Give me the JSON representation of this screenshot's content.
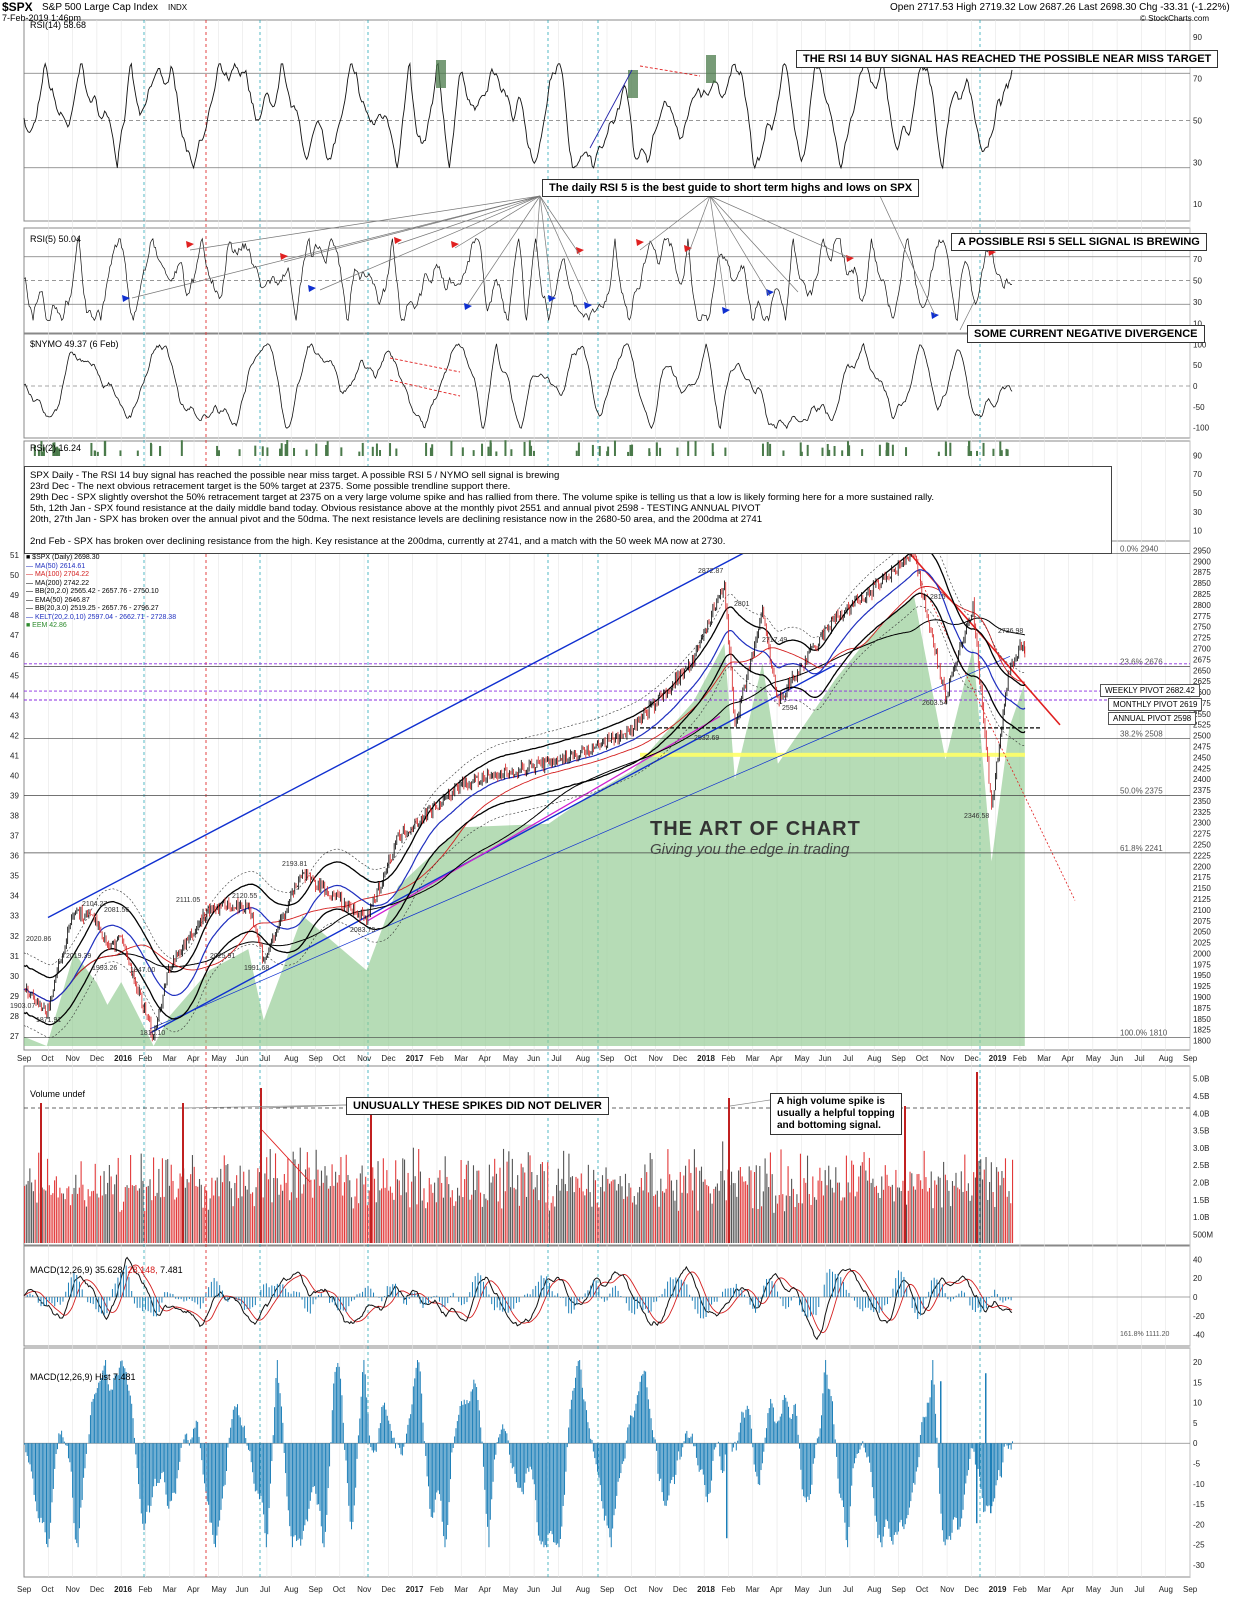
{
  "header": {
    "ticker": "$SPX",
    "name": "S&P 500 Large Cap Index",
    "exchange": "INDX",
    "date": "7-Feb-2019 1:46pm",
    "ohlc": "Open 2717.53 High 2719.32 Low 2687.26 Last 2698.30 Chg -33.31 (-1.22%)",
    "source": "© StockCharts.com"
  },
  "panels": {
    "rsi14": {
      "label": "RSI(14) 58.68",
      "ticks": [
        "90",
        "70",
        "50",
        "30",
        "10"
      ]
    },
    "rsi5": {
      "label": "RSI(5) 50.04",
      "ticks": [
        "90",
        "70",
        "50",
        "30",
        "10"
      ]
    },
    "nymo": {
      "label": "$NYMO 49.37 (6 Feb)",
      "ticks": [
        "100",
        "50",
        "0",
        "-50",
        "-100"
      ]
    },
    "rsi2": {
      "label": "RSI(2) 16.24",
      "ticks": [
        "90",
        "70",
        "50",
        "30",
        "10"
      ]
    },
    "price": {
      "label": "$SPX (Daily) 2698.30",
      "ticks": [
        "2950",
        "2900",
        "2875",
        "2850",
        "2825",
        "2800",
        "2775",
        "2750",
        "2725",
        "2700",
        "2675",
        "2650",
        "2625",
        "2600",
        "2575",
        "2550",
        "2525",
        "2500",
        "2475",
        "2450",
        "2425",
        "2400",
        "2375",
        "2350",
        "2325",
        "2300",
        "2275",
        "2250",
        "2225",
        "2200",
        "2175",
        "2150",
        "2125",
        "2100",
        "2075",
        "2050",
        "2025",
        "2000",
        "1975",
        "1950",
        "1925",
        "1900",
        "1875",
        "1850",
        "1825",
        "1800"
      ],
      "left_ticks": [
        "51",
        "50",
        "49",
        "48",
        "47",
        "46",
        "45",
        "44",
        "43",
        "42",
        "41",
        "40",
        "39",
        "38",
        "37",
        "36",
        "35",
        "34",
        "33",
        "32",
        "31",
        "30",
        "29",
        "28",
        "27"
      ],
      "fib_labels": [
        "0.0% 2940",
        "23.6% 2676",
        "38.2% 2508",
        "50.0% 2375",
        "61.8% 2241",
        "100.0% 1810"
      ],
      "pivots": {
        "weekly": "WEEKLY PIVOT 2682.42",
        "monthly": "MONTHLY PIVOT 2619",
        "annual": "ANNUAL PIVOT 2598"
      },
      "point_labels": [
        "1871.91",
        "1993.26",
        "2019.39",
        "2104.27",
        "2081.56",
        "2020.86",
        "1903.07",
        "1810.10",
        "1847.00",
        "2111.05",
        "2120.55",
        "2025.91",
        "1991.68",
        "2193.81",
        "2083.79",
        "2872.87",
        "2801",
        "2717.49",
        "2594",
        "2532.69",
        "2940.91",
        "2815",
        "2603.54",
        "2346.58",
        "2736.98"
      ]
    },
    "volume": {
      "label": "Volume undef",
      "ticks": [
        "5.0B",
        "4.5B",
        "4.0B",
        "3.5B",
        "3.0B",
        "2.5B",
        "2.0B",
        "1.5B",
        "1.0B",
        "500M"
      ]
    },
    "macd": {
      "label_main": "MACD(12,26,9) 35.628,",
      "label_signal": " 28.148,",
      "label_hist": " 7.481",
      "ticks": [
        "40",
        "20",
        "0",
        "-20",
        "-40"
      ],
      "fib": "161.8% 1111.20"
    },
    "hist": {
      "label": "MACD(12,26,9) Hist 7.481",
      "ticks": [
        "20",
        "15",
        "10",
        "5",
        "0",
        "-5",
        "-10",
        "-15",
        "-20",
        "-25",
        "-30"
      ]
    }
  },
  "legend": [
    {
      "text": "■ $SPX (Daily) 2698.30",
      "color": "#000000"
    },
    {
      "text": "— MA(50) 2614.61",
      "color": "#1f2fbf"
    },
    {
      "text": "— MA(100) 2704.22",
      "color": "#d42020"
    },
    {
      "text": "— MA(200) 2742.22",
      "color": "#000000"
    },
    {
      "text": "— BB(20,2.0) 2565.42 - 2657.76 - 2750.10",
      "color": "#000000"
    },
    {
      "text": "— EMA(50) 2646.87",
      "color": "#000000"
    },
    {
      "text": "— BB(20,3.0) 2519.25 - 2657.76 - 2796.27",
      "color": "#000000"
    },
    {
      "text": "— KELT(20,2.0,10) 2597.04 - 2662.71 - 2728.38",
      "color": "#1f2fbf"
    },
    {
      "text": "■ EEM 42.86",
      "color": "#2e8b2e"
    }
  ],
  "notes": {
    "rsi14_signal": "THE RSI 14 BUY SIGNAL HAS REACHED THE POSSIBLE NEAR MISS TARGET",
    "rsi5_guide": "The daily RSI 5 is the best guide to short term highs and lows on SPX",
    "rsi5_sell": "A POSSIBLE RSI 5 SELL SIGNAL IS BREWING",
    "divergence": "SOME CURRENT NEGATIVE DIVERGENCE",
    "spikes": "UNUSUALLY THESE SPIKES DID NOT DELIVER",
    "vol_spike_1": "A high volume spike is",
    "vol_spike_2": "usually a helpful topping",
    "vol_spike_3": "and bottoming signal."
  },
  "commentary": [
    "SPX Daily - The RSI 14 buy signal has reached the possible near miss target. A possible RSI 5 / NYMO sell signal is brewing",
    "23rd Dec - The next obvious retracement target is the 50% target at 2375. Some possible trendline support there.",
    "29th Dec - SPX slightly overshot the 50% retracement target at 2375 on a very large volume spike and has rallied from there. The volume spike is telling us that a low is likely forming here for a more sustained rally.",
    "5th, 12th Jan - SPX found resistance at the daily middle band today. Obvious resistance above at the monthly pivot 2551 and annual pivot 2598 - TESTING ANNUAL PIVOT",
    "20th, 27th Jan - SPX has broken over the annual pivot and the 50dma. The next resistance levels are declining resistance now in the 2680-50 area, and the 200dma at 2741",
    "",
    "2nd Feb - SPX has broken over declining resistance from the high. Key resistance at the 200dma, currently at 2741, and a match with the 50 week MA now at 2730."
  ],
  "watermark": {
    "title": "THE ART OF CHART",
    "tagline": "Giving you the edge in trading"
  },
  "x_axis": {
    "months": [
      "Sep",
      "Oct",
      "Nov",
      "Dec",
      "2016",
      "Feb",
      "Mar",
      "Apr",
      "May",
      "Jun",
      "Jul",
      "Aug",
      "Sep",
      "Oct",
      "Nov",
      "Dec",
      "2017",
      "Feb",
      "Mar",
      "Apr",
      "May",
      "Jun",
      "Jul",
      "Aug",
      "Sep",
      "Oct",
      "Nov",
      "Dec",
      "2018",
      "Feb",
      "Mar",
      "Apr",
      "May",
      "Jun",
      "Jul",
      "Aug",
      "Sep",
      "Oct",
      "Nov",
      "Dec",
      "2019",
      "Feb",
      "Mar",
      "Apr",
      "May",
      "Jun",
      "Jul",
      "Aug",
      "Sep"
    ]
  },
  "colors": {
    "up": "#000000",
    "down": "#d42020",
    "ma50": "#1f2fbf",
    "ma100": "#d42020",
    "ma200": "#000000",
    "eem": "#8fc98f",
    "macd_hist": "#1d7fb8",
    "pivot": "#8a2be2",
    "fib_band": "#ffff66"
  },
  "chart_data": {
    "type": "line",
    "title": "$SPX S&P 500 Large Cap Index",
    "x_range": [
      "2015-09",
      "2019-09"
    ],
    "y_range": [
      1800,
      2950
    ],
    "series": [
      {
        "name": "$SPX (Daily)",
        "points": [
          [
            "2015-09-01",
            1920
          ],
          [
            "2015-09-29",
            1871.91
          ],
          [
            "2015-11-03",
            2104.27
          ],
          [
            "2015-12-01",
            2081.56
          ],
          [
            "2015-12-14",
            2020.86
          ],
          [
            "2016-01-01",
            2040
          ],
          [
            "2016-02-11",
            1810.1
          ],
          [
            "2016-03-01",
            1980
          ],
          [
            "2016-04-20",
            2111.05
          ],
          [
            "2016-06-08",
            2120.55
          ],
          [
            "2016-06-27",
            1991.68
          ],
          [
            "2016-08-15",
            2193.81
          ],
          [
            "2016-11-04",
            2083.79
          ],
          [
            "2016-12-13",
            2277
          ],
          [
            "2017-03-01",
            2400
          ],
          [
            "2017-06-19",
            2453
          ],
          [
            "2017-08-08",
            2480
          ],
          [
            "2017-10-02",
            2530
          ],
          [
            "2017-12-18",
            2690
          ],
          [
            "2018-01-26",
            2872.87
          ],
          [
            "2018-02-09",
            2532.69
          ],
          [
            "2018-03-13",
            2801
          ],
          [
            "2018-04-02",
            2594
          ],
          [
            "2018-06-13",
            2791
          ],
          [
            "2018-07-25",
            2848
          ],
          [
            "2018-09-20",
            2940.91
          ],
          [
            "2018-10-29",
            2603.54
          ],
          [
            "2018-12-03",
            2815
          ],
          [
            "2018-12-26",
            2346.58
          ],
          [
            "2019-01-18",
            2675
          ],
          [
            "2019-02-06",
            2736.98
          ],
          [
            "2019-02-07",
            2698.3
          ]
        ]
      }
    ],
    "horizontal_levels": [
      {
        "name": "WEEKLY PIVOT",
        "value": 2682.42
      },
      {
        "name": "MONTHLY PIVOT",
        "value": 2619
      },
      {
        "name": "ANNUAL PIVOT",
        "value": 2598
      }
    ],
    "fibonacci": [
      {
        "label": "0.0%",
        "value": 2940
      },
      {
        "label": "23.6%",
        "value": 2676
      },
      {
        "label": "38.2%",
        "value": 2508
      },
      {
        "label": "50.0%",
        "value": 2375
      },
      {
        "label": "61.8%",
        "value": 2241
      },
      {
        "label": "100.0%",
        "value": 1810
      }
    ]
  }
}
